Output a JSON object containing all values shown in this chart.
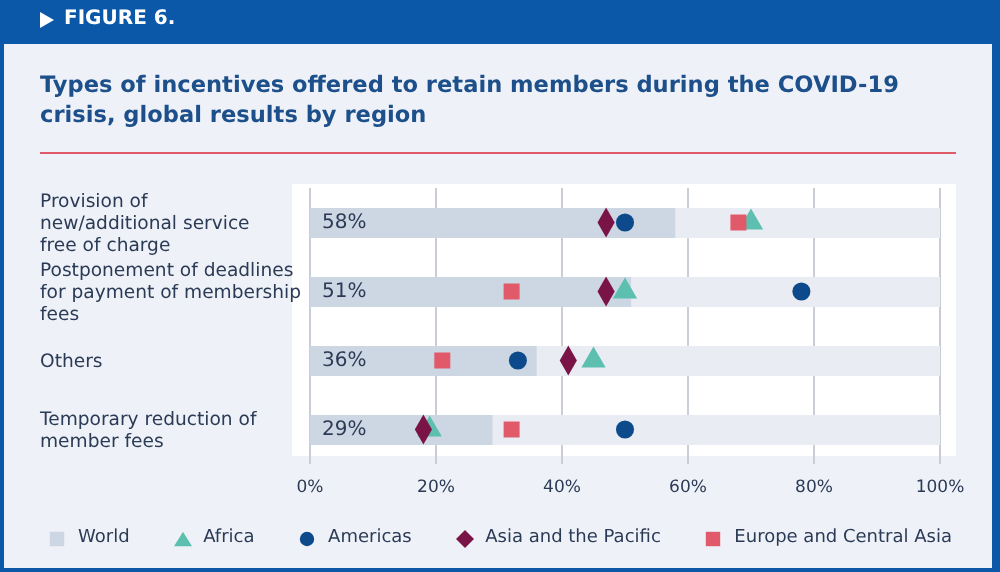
{
  "chart_data": {
    "type": "scatter",
    "orientation": "horizontal",
    "title": "Types of incentives offered to retain members during the COVID-19 crisis, global results by region",
    "annotations": [
      "FIGURE 6."
    ],
    "categories": [
      "Provision of new/additional service free of charge",
      "Postponement of deadlines for payment of membership fees",
      "Others",
      "Temporary reduction of member fees"
    ],
    "series": [
      {
        "name": "World",
        "type": "bar",
        "color": "#cdd6e3",
        "values": [
          58,
          51,
          36,
          29
        ],
        "value_labels": [
          "58%",
          "51%",
          "36%",
          "29%"
        ]
      },
      {
        "name": "Africa",
        "type": "scatter",
        "marker": "triangle",
        "color": "#5dbfb0",
        "values": [
          70,
          50,
          45,
          19
        ]
      },
      {
        "name": "Americas",
        "marker": "circle",
        "color": "#0d4a8c",
        "values": [
          50,
          78,
          33,
          50
        ]
      },
      {
        "name": "Asia and the Pacific",
        "type": "scatter",
        "marker": "diamond",
        "color": "#7a1446",
        "values": [
          47,
          47,
          41,
          18
        ]
      },
      {
        "name": "Europe and Central Asia",
        "type": "scatter",
        "marker": "square",
        "color": "#e05a6a",
        "values": [
          68,
          32,
          21,
          32
        ]
      }
    ],
    "xlim": [
      0,
      100
    ],
    "xticks": [
      {
        "value": 0,
        "label": "0%"
      },
      {
        "value": 20,
        "label": "20%"
      },
      {
        "value": 40,
        "label": "40%"
      },
      {
        "value": 60,
        "label": "60%"
      },
      {
        "value": 80,
        "label": "80%"
      },
      {
        "value": 100,
        "label": "100%"
      }
    ],
    "grid": "x",
    "legend": "bottom"
  }
}
